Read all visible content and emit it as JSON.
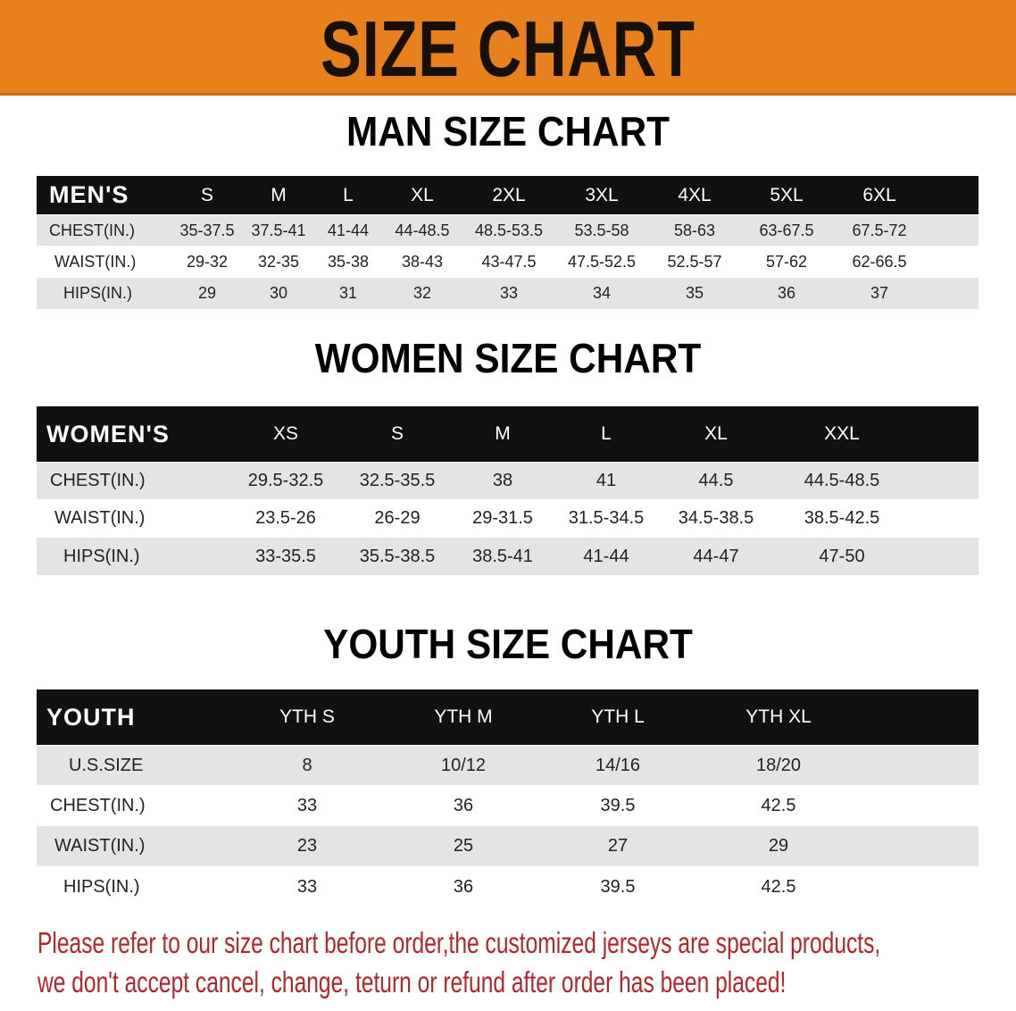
{
  "banner": {
    "title": "SIZE CHART",
    "color": "#e8801e"
  },
  "men": {
    "title": "MAN SIZE CHART",
    "header": [
      "MEN'S",
      "S",
      "M",
      "L",
      "XL",
      "2XL",
      "3XL",
      "4XL",
      "5XL",
      "6XL"
    ],
    "rows": [
      [
        "CHEST(IN.)",
        "35-37.5",
        "37.5-41",
        "41-44",
        "44-48.5",
        "48.5-53.5",
        "53.5-58",
        "58-63",
        "63-67.5",
        "67.5-72"
      ],
      [
        "WAIST(IN.)",
        "29-32",
        "32-35",
        "35-38",
        "38-43",
        "43-47.5",
        "47.5-52.5",
        "52.5-57",
        "57-62",
        "62-66.5"
      ],
      [
        "HIPS(IN.)",
        "29",
        "30",
        "31",
        "32",
        "33",
        "34",
        "35",
        "36",
        "37"
      ]
    ]
  },
  "women": {
    "title": "WOMEN SIZE CHART",
    "header": [
      "WOMEN'S",
      "XS",
      "S",
      "M",
      "L",
      "XL",
      "XXL"
    ],
    "rows": [
      [
        "CHEST(IN.)",
        "29.5-32.5",
        "32.5-35.5",
        "38",
        "41",
        "44.5",
        "44.5-48.5"
      ],
      [
        "WAIST(IN.)",
        "23.5-26",
        "26-29",
        "29-31.5",
        "31.5-34.5",
        "34.5-38.5",
        "38.5-42.5"
      ],
      [
        "HIPS(IN.)",
        "33-35.5",
        "35.5-38.5",
        "38.5-41",
        "41-44",
        "44-47",
        "47-50"
      ]
    ]
  },
  "youth": {
    "title": "YOUTH SIZE CHART",
    "header": [
      "YOUTH",
      "YTH S",
      "YTH M",
      "YTH L",
      "YTH XL"
    ],
    "rows": [
      [
        "U.S.SIZE",
        "8",
        "10/12",
        "14/16",
        "18/20"
      ],
      [
        "CHEST(IN.)",
        "33",
        "36",
        "39.5",
        "42.5"
      ],
      [
        "WAIST(IN.)",
        "23",
        "25",
        "27",
        "29"
      ],
      [
        "HIPS(IN.)",
        "33",
        "36",
        "39.5",
        "42.5"
      ]
    ]
  },
  "note": {
    "line1": "Please refer to our size chart before order,the customized jerseys are special products,",
    "line2": "we don't accept cancel, change, teturn or refund after order has been placed!",
    "color": "#b3262a"
  }
}
